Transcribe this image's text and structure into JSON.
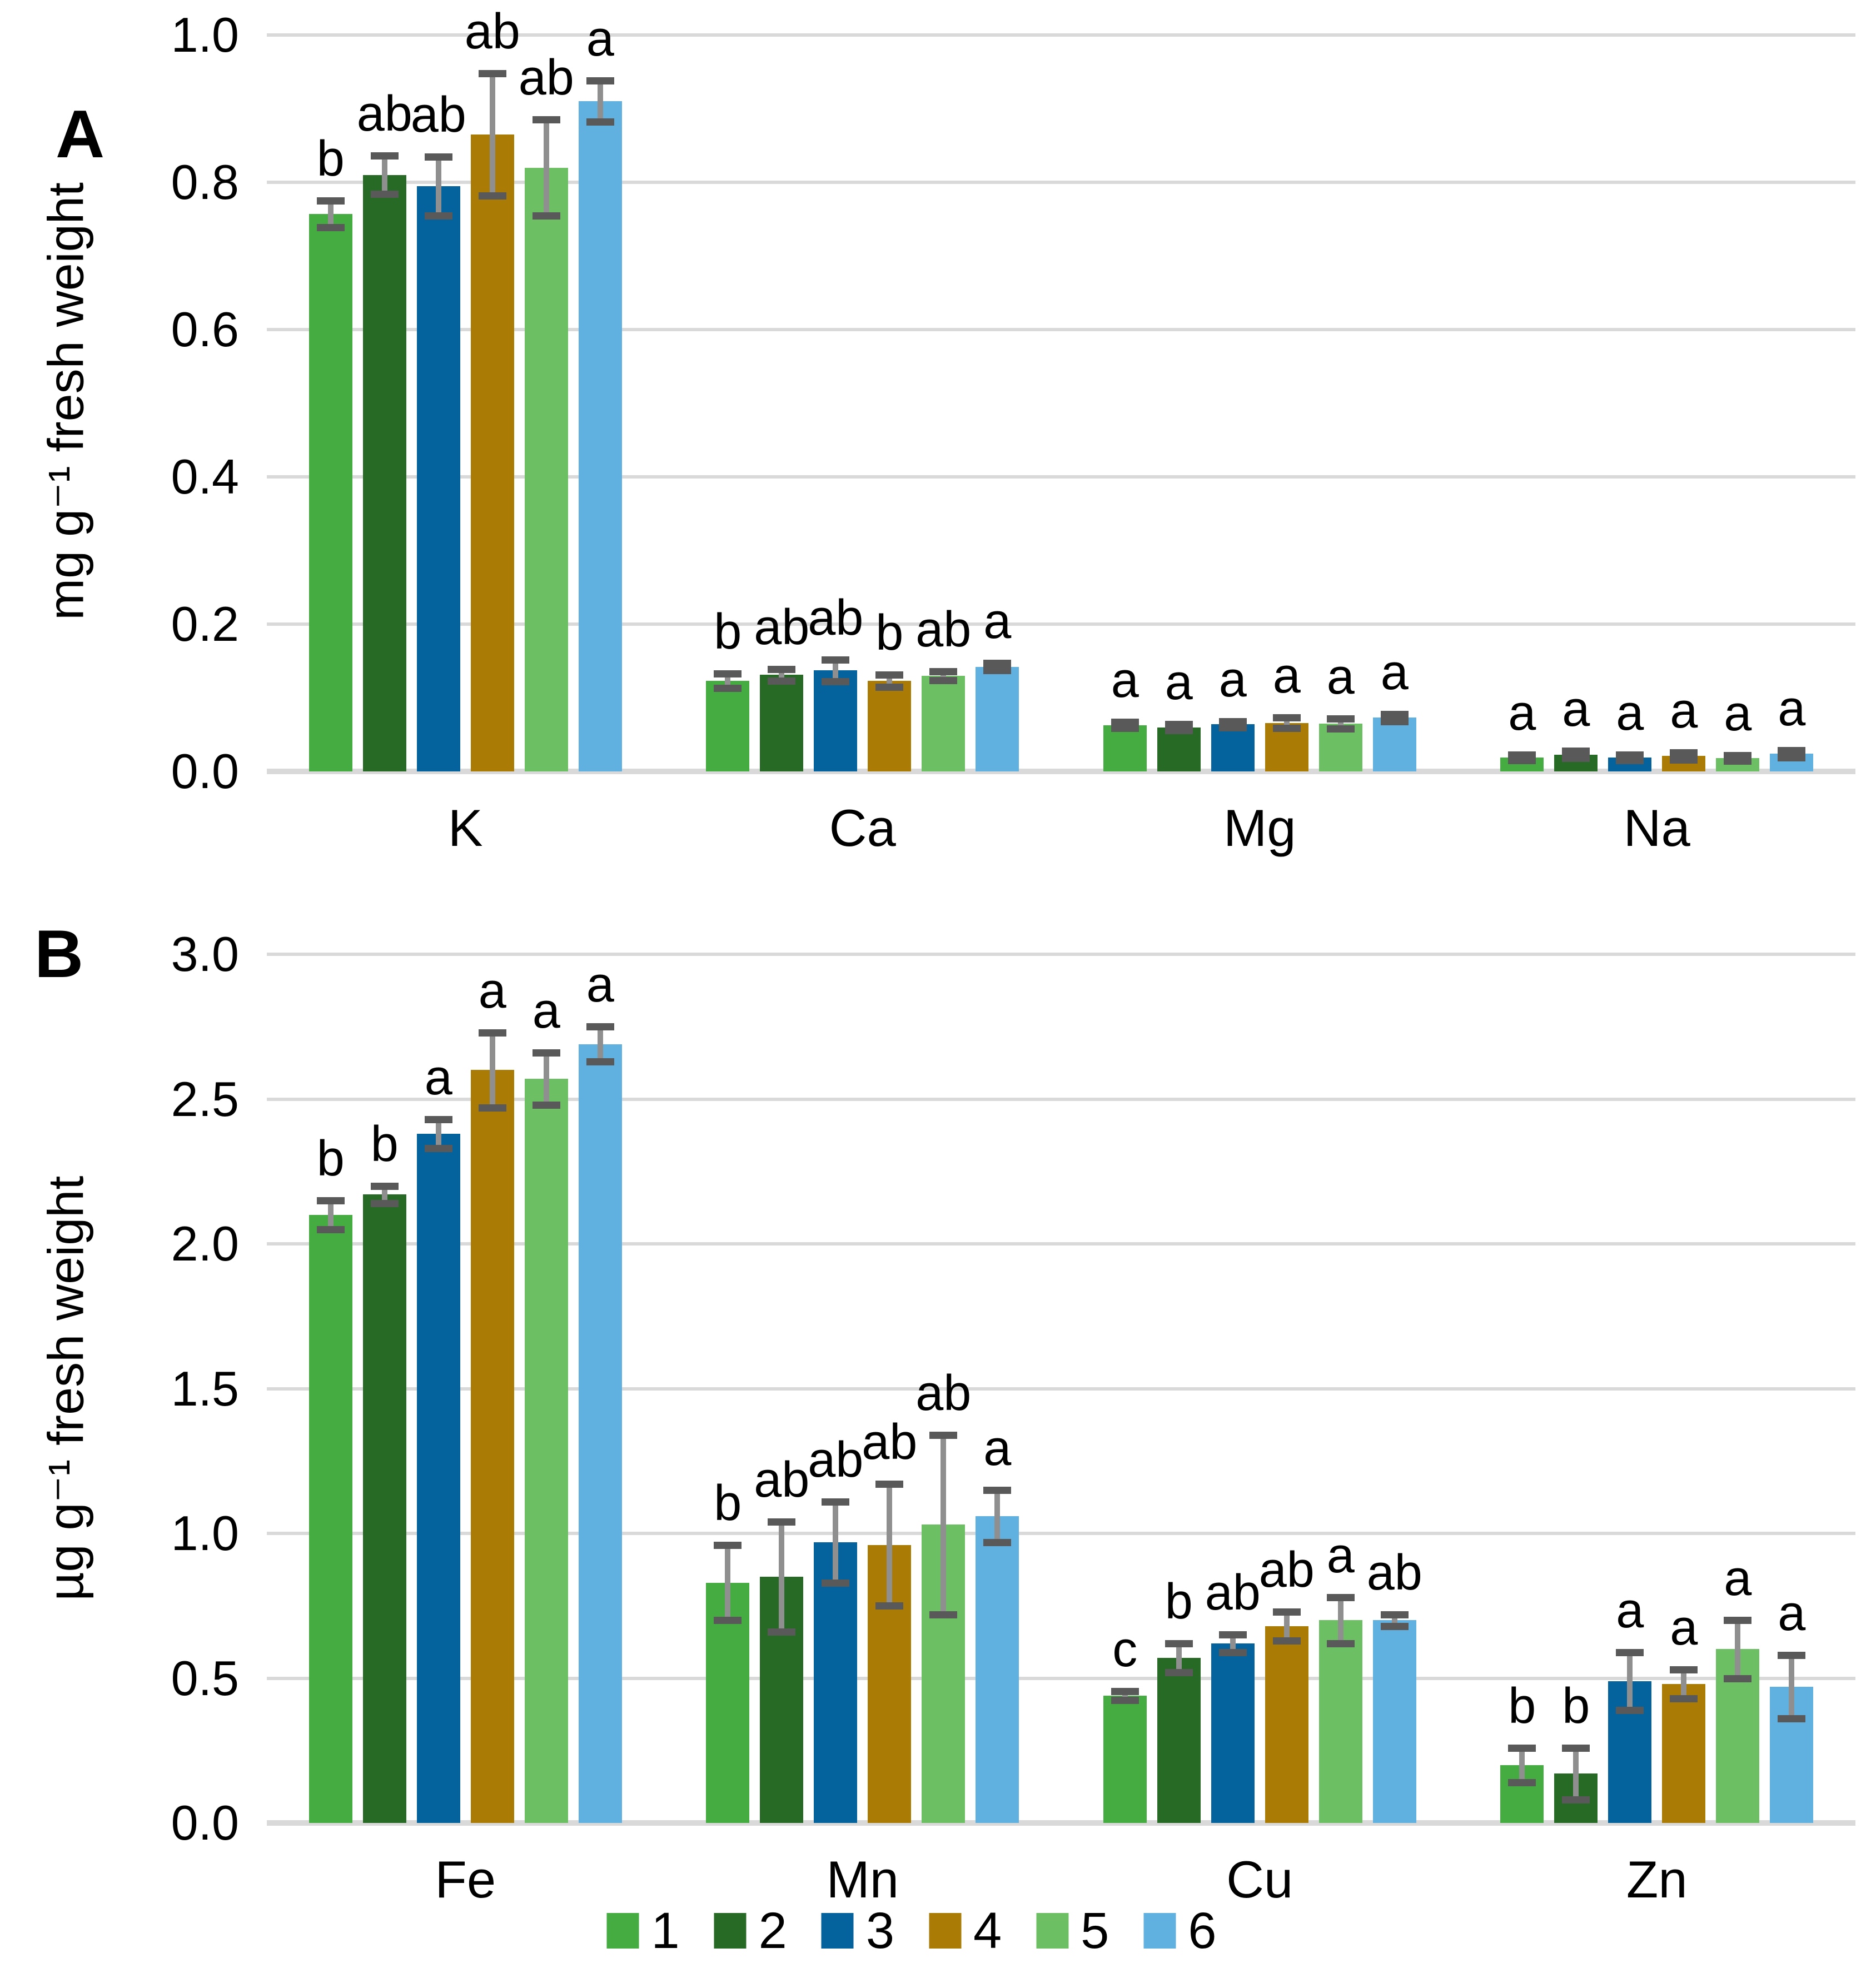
{
  "figure": {
    "background_color": "#ffffff",
    "gridline_color": "#d9d9d9",
    "error_bar_line_color": "#8f8f8f",
    "error_bar_cap_color": "#595959"
  },
  "legend": {
    "labels": [
      "1",
      "2",
      "3",
      "4",
      "5",
      "6"
    ],
    "colors": [
      "#45AC41",
      "#276A25",
      "#04629C",
      "#AA7C06",
      "#6DBF63",
      "#61B1E0"
    ],
    "position": "bottom-center"
  },
  "chart_data": [
    {
      "type": "bar",
      "panel_label": "A",
      "ylabel": "mg g⁻¹ fresh weight",
      "xlabel": "",
      "ylim": [
        0,
        1.0
      ],
      "ytick_step": 0.2,
      "ytick_labels": [
        "0.0",
        "0.2",
        "0.4",
        "0.6",
        "0.8",
        "1.0"
      ],
      "grid": true,
      "categories": [
        "K",
        "Ca",
        "Mg",
        "Na"
      ],
      "series": [
        {
          "name": "1",
          "color": "#45AC41",
          "values": [
            0.757,
            0.123,
            0.063,
            0.019
          ],
          "errors": [
            0.018,
            0.01,
            0.004,
            0.004
          ],
          "sig_letters": [
            "b",
            "b",
            "a",
            "a"
          ]
        },
        {
          "name": "2",
          "color": "#276A25",
          "values": [
            0.81,
            0.131,
            0.06,
            0.023
          ],
          "errors": [
            0.026,
            0.008,
            0.004,
            0.005
          ],
          "sig_letters": [
            "ab",
            "ab",
            "a",
            "a"
          ]
        },
        {
          "name": "3",
          "color": "#04629C",
          "values": [
            0.795,
            0.137,
            0.064,
            0.019
          ],
          "errors": [
            0.04,
            0.015,
            0.004,
            0.004
          ],
          "sig_letters": [
            "ab",
            "ab",
            "a",
            "a"
          ]
        },
        {
          "name": "4",
          "color": "#AA7C06",
          "values": [
            0.865,
            0.123,
            0.066,
            0.021
          ],
          "errors": [
            0.083,
            0.008,
            0.007,
            0.005
          ],
          "sig_letters": [
            "ab",
            "b",
            "a",
            "a"
          ]
        },
        {
          "name": "5",
          "color": "#6DBF63",
          "values": [
            0.82,
            0.13,
            0.065,
            0.018
          ],
          "errors": [
            0.065,
            0.006,
            0.007,
            0.004
          ],
          "sig_letters": [
            "ab",
            "ab",
            "a",
            "a"
          ]
        },
        {
          "name": "6",
          "color": "#61B1E0",
          "values": [
            0.91,
            0.142,
            0.073,
            0.024
          ],
          "errors": [
            0.028,
            0.005,
            0.005,
            0.005
          ],
          "sig_letters": [
            "a",
            "a",
            "a",
            "a"
          ]
        }
      ]
    },
    {
      "type": "bar",
      "panel_label": "B",
      "ylabel": "µg g⁻¹ fresh weight",
      "xlabel": "",
      "ylim": [
        0,
        3.0
      ],
      "ytick_step": 0.5,
      "ytick_labels": [
        "0.0",
        "0.5",
        "1.0",
        "1.5",
        "2.0",
        "2.5",
        "3.0"
      ],
      "grid": true,
      "categories": [
        "Fe",
        "Mn",
        "Cu",
        "Zn"
      ],
      "series": [
        {
          "name": "1",
          "color": "#45AC41",
          "values": [
            2.1,
            0.83,
            0.44,
            0.2
          ],
          "errors": [
            0.05,
            0.13,
            0.015,
            0.06
          ],
          "sig_letters": [
            "b",
            "b",
            "c",
            "b"
          ]
        },
        {
          "name": "2",
          "color": "#276A25",
          "values": [
            2.17,
            0.85,
            0.57,
            0.17
          ],
          "errors": [
            0.03,
            0.19,
            0.05,
            0.09
          ],
          "sig_letters": [
            "b",
            "ab",
            "b",
            "b"
          ]
        },
        {
          "name": "3",
          "color": "#04629C",
          "values": [
            2.38,
            0.97,
            0.62,
            0.49
          ],
          "errors": [
            0.05,
            0.14,
            0.03,
            0.1
          ],
          "sig_letters": [
            "a",
            "ab",
            "ab",
            "a"
          ]
        },
        {
          "name": "4",
          "color": "#AA7C06",
          "values": [
            2.6,
            0.96,
            0.68,
            0.48
          ],
          "errors": [
            0.13,
            0.21,
            0.05,
            0.05
          ],
          "sig_letters": [
            "a",
            "ab",
            "ab",
            "a"
          ]
        },
        {
          "name": "5",
          "color": "#6DBF63",
          "values": [
            2.57,
            1.03,
            0.7,
            0.6
          ],
          "errors": [
            0.09,
            0.31,
            0.08,
            0.1
          ],
          "sig_letters": [
            "a",
            "ab",
            "a",
            "a"
          ]
        },
        {
          "name": "6",
          "color": "#61B1E0",
          "values": [
            2.69,
            1.06,
            0.7,
            0.47
          ],
          "errors": [
            0.06,
            0.09,
            0.02,
            0.11
          ],
          "sig_letters": [
            "a",
            "a",
            "ab",
            "a"
          ]
        }
      ]
    }
  ]
}
